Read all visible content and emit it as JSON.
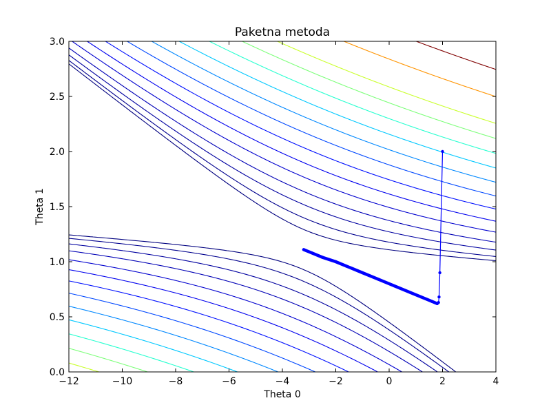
{
  "chart_data": {
    "type": "contour",
    "title": "Paketna metoda",
    "xlabel": "Theta 0",
    "ylabel": "Theta 1",
    "xlim": [
      -12,
      4
    ],
    "ylim": [
      0.0,
      3.0
    ],
    "xticks": [
      -12,
      -10,
      -8,
      -6,
      -4,
      -2,
      0,
      2,
      4
    ],
    "yticks": [
      0.0,
      0.5,
      1.0,
      1.5,
      2.0,
      2.5,
      3.0
    ],
    "ytick_labels": [
      "0.0",
      "0.5",
      "1.0",
      "1.5",
      "2.0",
      "2.5",
      "3.0"
    ],
    "grid": false,
    "colors": {
      "path": "#0000ff",
      "contour_levels": [
        "#00007f",
        "#00008e",
        "#0000a0",
        "#0000b6",
        "#0000cf",
        "#0000ee",
        "#0010ff",
        "#0048ff",
        "#0088ff",
        "#00c8ff",
        "#27ffd0",
        "#7dff7a",
        "#caff2d",
        "#ff9400",
        "#7f0000"
      ]
    },
    "contour_levels": [
      0.3,
      0.75,
      1.5,
      2.5,
      3.9,
      5.6,
      7.7,
      10.2,
      13.1,
      16.4,
      20.1,
      24.2,
      28.7,
      37.5,
      47.5
    ],
    "cost_minimum": {
      "theta0": -3.2,
      "theta1": 1.11
    },
    "descent_path": [
      {
        "theta0": 2.0,
        "theta1": 2.0
      },
      {
        "theta0": 1.9,
        "theta1": 0.9
      },
      {
        "theta0": 1.87,
        "theta1": 0.68
      },
      {
        "theta0": 1.85,
        "theta1": 0.63
      },
      {
        "theta0": 1.8,
        "theta1": 0.62
      },
      {
        "theta0": 1.6,
        "theta1": 0.64
      },
      {
        "theta0": 1.2,
        "theta1": 0.68
      },
      {
        "theta0": 0.8,
        "theta1": 0.72
      },
      {
        "theta0": 0.2,
        "theta1": 0.78
      },
      {
        "theta0": -0.4,
        "theta1": 0.84
      },
      {
        "theta0": -1.0,
        "theta1": 0.9
      },
      {
        "theta0": -1.6,
        "theta1": 0.96
      },
      {
        "theta0": -2.0,
        "theta1": 1.0
      },
      {
        "theta0": -2.5,
        "theta1": 1.04
      },
      {
        "theta0": -2.9,
        "theta1": 1.08
      },
      {
        "theta0": -3.2,
        "theta1": 1.11
      }
    ]
  }
}
